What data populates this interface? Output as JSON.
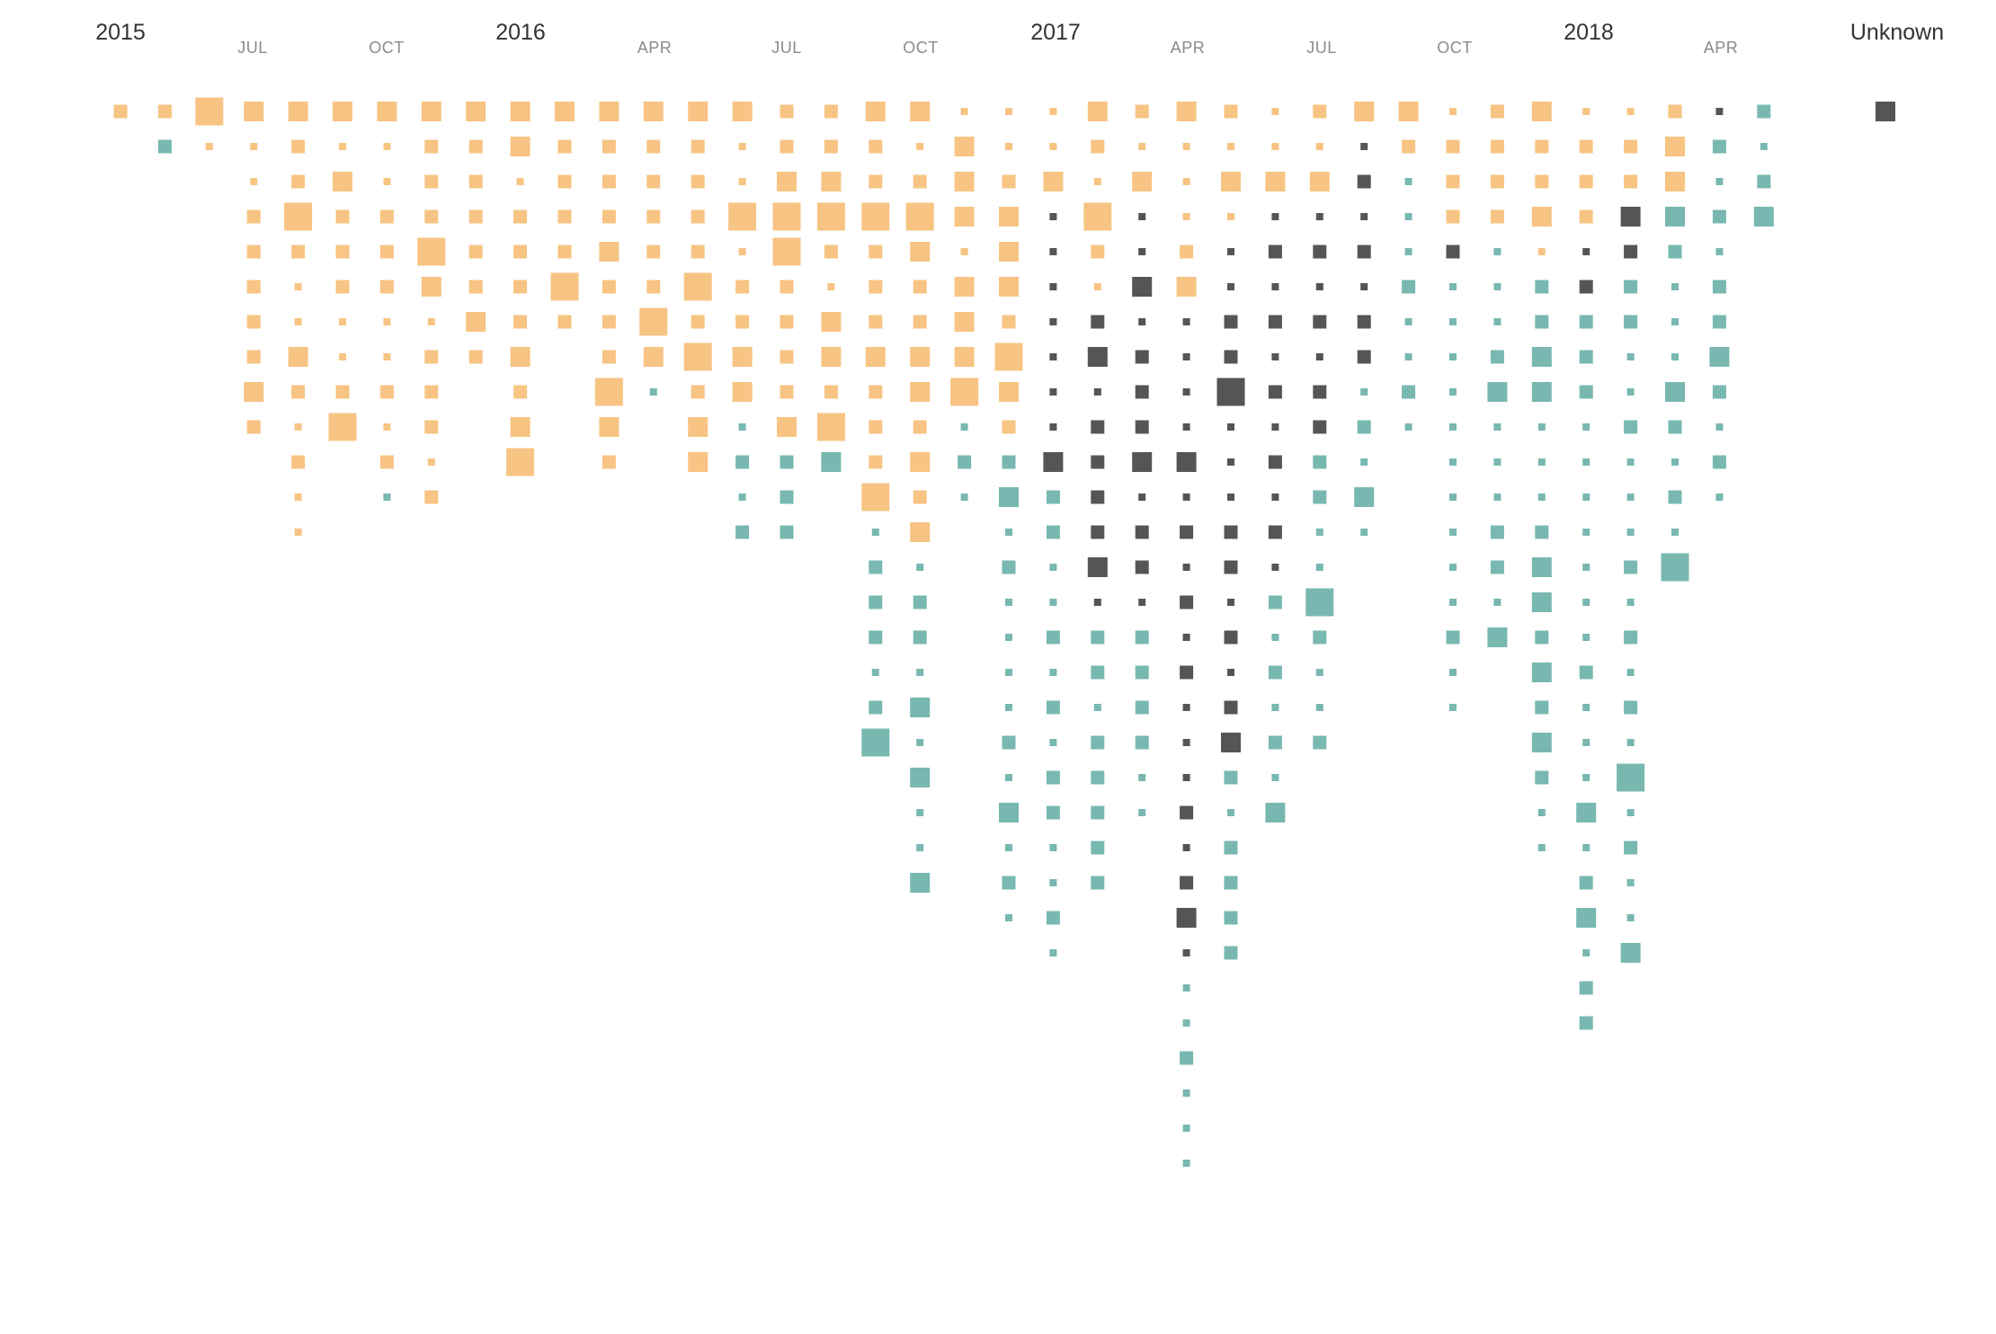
{
  "colors": {
    "orange": "#f7c483",
    "teal": "#78b8b1",
    "dark": "#555555",
    "background": "#ffffff"
  },
  "chart_data": {
    "type": "scatter",
    "description_of_encoding": "",
    "x_axis": {
      "year_labels": [
        "2015",
        "2016",
        "2017",
        "2018"
      ],
      "month_labels": [
        "JUL",
        "OCT",
        "APR",
        "JUL",
        "OCT",
        "APR",
        "JUL",
        "OCT",
        "APR",
        "JUL",
        "OCT",
        "APR"
      ],
      "unknown_label": "Unknown"
    },
    "columns": [
      {
        "n": 1,
        "cells": [
          "o3"
        ]
      },
      {
        "n": 2,
        "cells": [
          "o3",
          "t3"
        ]
      },
      {
        "n": 3,
        "cells": [
          "o5",
          "o1"
        ]
      },
      {
        "n": 4,
        "cells": [
          "o4",
          "o1",
          "o1",
          "o3",
          "o3",
          "o3",
          "o3",
          "o3",
          "o4",
          "o3"
        ]
      },
      {
        "n": 5,
        "cells": [
          "o4",
          "o3",
          "o3",
          "o5",
          "o3",
          "o1",
          "o1",
          "o4",
          "o3",
          "o1",
          "o3",
          "o1",
          "o1"
        ]
      },
      {
        "n": 6,
        "cells": [
          "o4",
          "o1",
          "o4",
          "o3",
          "o3",
          "o3",
          "o1",
          "o1",
          "o3",
          "o5"
        ]
      },
      {
        "n": 7,
        "cells": [
          "o4",
          "o1",
          "o1",
          "o3",
          "o3",
          "o3",
          "o1",
          "o1",
          "o3",
          "o1",
          "o3",
          "t1"
        ]
      },
      {
        "n": 8,
        "cells": [
          "o4",
          "o3",
          "o3",
          "o3",
          "o5",
          "o4",
          "o1",
          "o3",
          "o3",
          "o3",
          "o1",
          "o3"
        ]
      },
      {
        "n": 9,
        "cells": [
          "o4",
          "o3",
          "o3",
          "o3",
          "o3",
          "o3",
          "o4",
          "o3"
        ]
      },
      {
        "n": 10,
        "cells": [
          "o4",
          "o4",
          "o1",
          "o3",
          "o3",
          "o3",
          "o3",
          "o4",
          "o3",
          "o4",
          "o5"
        ]
      },
      {
        "n": 11,
        "cells": [
          "o4",
          "o3",
          "o3",
          "o3",
          "o3",
          "o5",
          "o3"
        ]
      },
      {
        "n": 12,
        "cells": [
          "o4",
          "o3",
          "o3",
          "o3",
          "o4",
          "o3",
          "o3",
          "o3",
          "o5",
          "o4",
          "o3"
        ]
      },
      {
        "n": 13,
        "cells": [
          "o4",
          "o3",
          "o3",
          "o3",
          "o3",
          "o3",
          "o5",
          "o4",
          "t1"
        ]
      },
      {
        "n": 14,
        "cells": [
          "o4",
          "o3",
          "o3",
          "o3",
          "o3",
          "o5",
          "o3",
          "o5",
          "o3",
          "o4",
          "o4"
        ]
      },
      {
        "n": 15,
        "cells": [
          "o4",
          "o1",
          "o1",
          "o5",
          "o1",
          "o3",
          "o3",
          "o4",
          "o4",
          "t1",
          "t3",
          "t1",
          "t3"
        ]
      },
      {
        "n": 16,
        "cells": [
          "o3",
          "o3",
          "o4",
          "o5",
          "o5",
          "o3",
          "o3",
          "o3",
          "o3",
          "o4",
          "t3",
          "t3",
          "t3"
        ]
      },
      {
        "n": 17,
        "cells": [
          "o3",
          "o3",
          "o4",
          "o5",
          "o3",
          "o1",
          "o4",
          "o4",
          "o3",
          "o5",
          "t4"
        ]
      },
      {
        "n": 18,
        "cells": [
          "o4",
          "o3",
          "o3",
          "o5",
          "o3",
          "o3",
          "o3",
          "o4",
          "o3",
          "o3",
          "o3",
          "o5",
          "t1",
          "t3",
          "t3",
          "t3",
          "t1",
          "t3",
          "t5"
        ]
      },
      {
        "n": 19,
        "cells": [
          "o4",
          "o1",
          "o3",
          "o5",
          "o4",
          "o3",
          "o3",
          "o4",
          "o4",
          "o3",
          "o4",
          "o3",
          "o4",
          "t1",
          "t3",
          "t3",
          "t1",
          "t4",
          "t1",
          "t4",
          "t1",
          "t1",
          "t4"
        ]
      },
      {
        "n": 20,
        "cells": [
          "o1",
          "o4",
          "o4",
          "o4",
          "o1",
          "o4",
          "o4",
          "o4",
          "o5",
          "t1",
          "t3",
          "t1"
        ]
      },
      {
        "n": 21,
        "cells": [
          "o1",
          "o1",
          "o3",
          "o4",
          "o4",
          "o4",
          "o3",
          "o5",
          "o4",
          "o3",
          "t3",
          "t4",
          "t1",
          "t3",
          "t1",
          "t1",
          "t1",
          "t1",
          "t3",
          "t1",
          "t4",
          "t1",
          "t3",
          "t1"
        ]
      },
      {
        "n": 22,
        "cells": [
          "o1",
          "o1",
          "o4",
          "d1",
          "d1",
          "d1",
          "d1",
          "d1",
          "d1",
          "d1",
          "d4",
          "t3",
          "t3",
          "t1",
          "t1",
          "t3",
          "t1",
          "t3",
          "t1",
          "t3",
          "t3",
          "t1",
          "t1",
          "t3",
          "t1"
        ]
      },
      {
        "n": 23,
        "cells": [
          "o4",
          "o3",
          "o1",
          "o5",
          "o3",
          "o1",
          "d3",
          "d4",
          "d1",
          "d3",
          "d3",
          "d3",
          "d3",
          "d4",
          "d1",
          "t3",
          "t3",
          "t1",
          "t3",
          "t3",
          "t3",
          "t3",
          "t3"
        ]
      },
      {
        "n": 24,
        "cells": [
          "o3",
          "o1",
          "o4",
          "d1",
          "d1",
          "d4",
          "d1",
          "d3",
          "d3",
          "d3",
          "d4",
          "d1",
          "d3",
          "d3",
          "d1",
          "t3",
          "t3",
          "t3",
          "t3",
          "t1",
          "t1"
        ]
      },
      {
        "n": 25,
        "cells": [
          "o4",
          "o1",
          "o1",
          "o1",
          "o3",
          "o4",
          "d1",
          "d1",
          "d1",
          "d1",
          "d4",
          "d1",
          "d3",
          "d1",
          "d3",
          "d1",
          "d3",
          "d1",
          "d1",
          "d1",
          "d3",
          "d1",
          "d3",
          "d4",
          "d1",
          "t1",
          "t1",
          "t3",
          "t1",
          "t1",
          "t1"
        ]
      },
      {
        "n": 26,
        "cells": [
          "o3",
          "o1",
          "o4",
          "o1",
          "d1",
          "d1",
          "d3",
          "d3",
          "d5",
          "d1",
          "d1",
          "d1",
          "d3",
          "d3",
          "d1",
          "d3",
          "d1",
          "d3",
          "d4",
          "t3",
          "t1",
          "t3",
          "t3",
          "t3",
          "t3"
        ]
      },
      {
        "n": 27,
        "cells": [
          "o1",
          "o1",
          "o4",
          "d1",
          "d3",
          "d1",
          "d3",
          "d1",
          "d3",
          "d1",
          "d3",
          "d1",
          "d3",
          "d1",
          "t3",
          "t1",
          "t3",
          "t1",
          "t3",
          "t1",
          "t4"
        ]
      },
      {
        "n": 28,
        "cells": [
          "o3",
          "o1",
          "o4",
          "d1",
          "d3",
          "d1",
          "d3",
          "d1",
          "d3",
          "d3",
          "t3",
          "t3",
          "t1",
          "t1",
          "t5",
          "t3",
          "t1",
          "t1",
          "t3"
        ]
      },
      {
        "n": 29,
        "cells": [
          "o4",
          "d1",
          "d3",
          "d1",
          "d3",
          "d1",
          "d3",
          "d3",
          "t1",
          "t3",
          "t1",
          "t4",
          "t1"
        ]
      },
      {
        "n": 30,
        "cells": [
          "o4",
          "o3",
          "t1",
          "t1",
          "t1",
          "t3",
          "t1",
          "t1",
          "t3",
          "t1"
        ]
      },
      {
        "n": 31,
        "cells": [
          "o1",
          "o3",
          "o3",
          "o3",
          "d3",
          "t1",
          "t1",
          "t1",
          "t1",
          "t1",
          "t1",
          "t1",
          "t1",
          "t1",
          "t1",
          "t3",
          "t1",
          "t1"
        ]
      },
      {
        "n": 32,
        "cells": [
          "o3",
          "o3",
          "o3",
          "o3",
          "t1",
          "t1",
          "t1",
          "t3",
          "t4",
          "t1",
          "t1",
          "t1",
          "t3",
          "t3",
          "t1",
          "t4"
        ]
      },
      {
        "n": 33,
        "cells": [
          "o4",
          "o3",
          "o3",
          "o4",
          "o1",
          "t3",
          "t3",
          "t4",
          "t4",
          "t1",
          "t1",
          "t1",
          "t3",
          "t4",
          "t4",
          "t3",
          "t4",
          "t3",
          "t4",
          "t3",
          "t1",
          "t1"
        ]
      },
      {
        "n": 34,
        "cells": [
          "o1",
          "o3",
          "o3",
          "o3",
          "d1",
          "d3",
          "t3",
          "t3",
          "t3",
          "t1",
          "t1",
          "t1",
          "t1",
          "t1",
          "t1",
          "t1",
          "t3",
          "t1",
          "t1",
          "t1",
          "t4",
          "t1",
          "t3",
          "t4",
          "t1",
          "t3",
          "t3"
        ]
      },
      {
        "n": 35,
        "cells": [
          "o1",
          "o3",
          "o3",
          "d4",
          "d3",
          "t3",
          "t3",
          "t1",
          "t1",
          "t3",
          "t1",
          "t1",
          "t1",
          "t3",
          "t1",
          "t3",
          "t1",
          "t3",
          "t1",
          "t5",
          "t1",
          "t3",
          "t1",
          "t1",
          "t4"
        ]
      },
      {
        "n": 36,
        "cells": [
          "o3",
          "o4",
          "o4",
          "t4",
          "t3",
          "t1",
          "t1",
          "t1",
          "t4",
          "t3",
          "t1",
          "t3",
          "t1",
          "t5"
        ]
      },
      {
        "n": 37,
        "cells": [
          "d1",
          "t3",
          "t1",
          "t3",
          "t1",
          "t3",
          "t3",
          "t4",
          "t3",
          "t1",
          "t3",
          "t1"
        ]
      },
      {
        "n": 38,
        "cells": [
          "t3",
          "t1",
          "t3",
          "t4"
        ]
      }
    ],
    "unknown_cells": [
      "d4"
    ]
  }
}
